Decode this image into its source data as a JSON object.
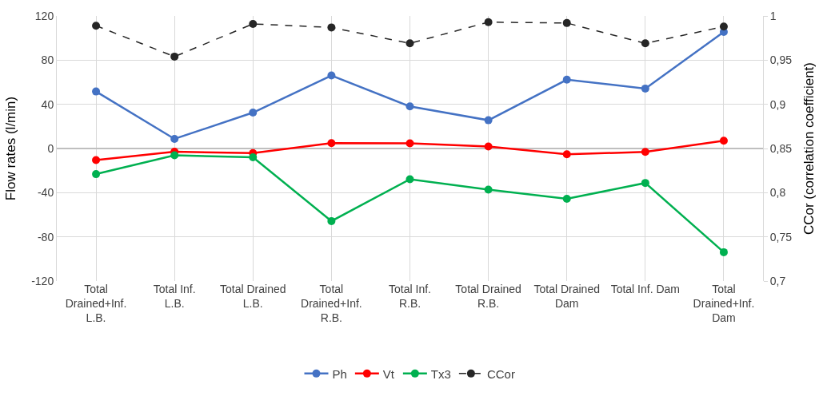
{
  "chart_data": {
    "type": "line",
    "categories": [
      "Total Drained+Inf. L.B.",
      "Total Inf. L.B.",
      "Total Drained L.B.",
      "Total Drained+Inf. R.B.",
      "Total Inf. R.B.",
      "Total Drained R.B.",
      "Total Drained Dam",
      "Total Inf. Dam",
      "Total Drained+Inf. Dam"
    ],
    "series": [
      {
        "name": "Ph",
        "color": "#4472c4",
        "values": [
          51.6,
          8.7,
          32.5,
          66.1,
          38.1,
          25.6,
          62.3,
          54.3,
          105.5
        ]
      },
      {
        "name": "Vt",
        "color": "#ff0000",
        "values": [
          -10.5,
          -2.9,
          -4.2,
          4.9,
          4.7,
          1.8,
          -5.3,
          -3.1,
          7.1
        ]
      },
      {
        "name": "Tx3",
        "color": "#00b050",
        "values": [
          -23.2,
          -6.2,
          -8.0,
          -65.7,
          -27.8,
          -37.2,
          -45.6,
          -31.2,
          -93.9
        ]
      },
      {
        "name": "CCor",
        "color": "#262626",
        "axis": "y2",
        "line_style": "dashed",
        "values": [
          0.989,
          0.954,
          0.991,
          0.987,
          0.969,
          0.993,
          0.992,
          0.969,
          0.988
        ]
      }
    ],
    "ylabel": "Flow rates (l/min)",
    "y2label": "CCor (correlation coefficient)",
    "ylim": [
      -120,
      120
    ],
    "yticks": [
      -120,
      -80,
      -40,
      0,
      40,
      80,
      120
    ],
    "y2lim": [
      0.7,
      1
    ],
    "y2ticks": [
      {
        "value": 0.7,
        "label": "0,7"
      },
      {
        "value": 0.75,
        "label": "0,75"
      },
      {
        "value": 0.8,
        "label": "0,8"
      },
      {
        "value": 0.85,
        "label": "0,85"
      },
      {
        "value": 0.9,
        "label": "0,9"
      },
      {
        "value": 0.95,
        "label": "0,95"
      },
      {
        "value": 1,
        "label": "1"
      }
    ],
    "grid": true,
    "legend": "bottom",
    "marker": "circle",
    "line_style": "solid"
  }
}
